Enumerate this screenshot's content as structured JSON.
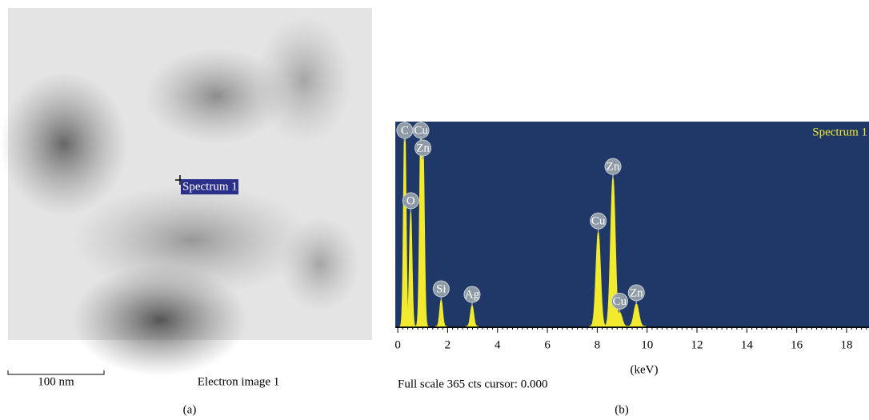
{
  "image_panel": {
    "marker_label": "Spectrum 1",
    "scale_bar": "100 nm",
    "image_label": "Electron image 1",
    "caption": "(a)"
  },
  "chart_data": {
    "type": "spectrum",
    "title": "Spectrum 1",
    "x_label": "(keV)",
    "footer": "Full scale 365 cts cursor: 0.000",
    "caption": "(b)",
    "xlim": [
      -0.1,
      18.9
    ],
    "ylim": [
      0,
      365
    ],
    "xticks": [
      0,
      2,
      4,
      6,
      8,
      10,
      12,
      14,
      16,
      18
    ],
    "color": "#f2ea2e",
    "background": "#1f3868",
    "peaks": [
      {
        "label": "C",
        "energy": 0.28,
        "counts": 365
      },
      {
        "label": "O",
        "energy": 0.52,
        "counts": 204
      },
      {
        "label": "Cu",
        "energy": 0.93,
        "counts": 365
      },
      {
        "label": "Zn",
        "energy": 1.01,
        "counts": 330
      },
      {
        "label": "Si",
        "energy": 1.74,
        "counts": 47
      },
      {
        "label": "Ag",
        "energy": 2.98,
        "counts": 37
      },
      {
        "label": "Cu",
        "energy": 8.04,
        "counts": 168
      },
      {
        "label": "Zn",
        "energy": 8.63,
        "counts": 265
      },
      {
        "label": "Cu",
        "energy": 8.9,
        "counts": 25
      },
      {
        "label": "Zn",
        "energy": 9.57,
        "counts": 40
      }
    ]
  }
}
